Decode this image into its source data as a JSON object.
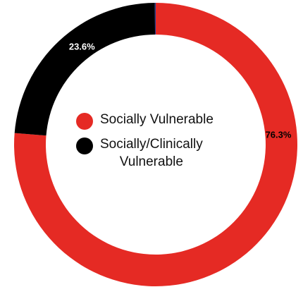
{
  "chart_data": {
    "type": "pie",
    "title": "",
    "series": [
      {
        "name": "Socially Vulnerable",
        "value": 76.3,
        "label": "76.3%",
        "color": "#e52a24",
        "label_color": "#000000"
      },
      {
        "name": "Socially/Clinically Vulnerable",
        "value": 23.6,
        "label": "23.6%",
        "color": "#000000",
        "label_color": "#ffffff"
      },
      {
        "name": "",
        "value": 0.1,
        "label": "",
        "color": "#1f3a93",
        "label_color": "#000000"
      }
    ],
    "legend": {
      "placement": "center",
      "items": [
        {
          "label": "Socially Vulnerable",
          "color": "#e52a24"
        },
        {
          "label": "Socially/Clinically\nVulnerable",
          "color": "#000000"
        }
      ]
    }
  }
}
